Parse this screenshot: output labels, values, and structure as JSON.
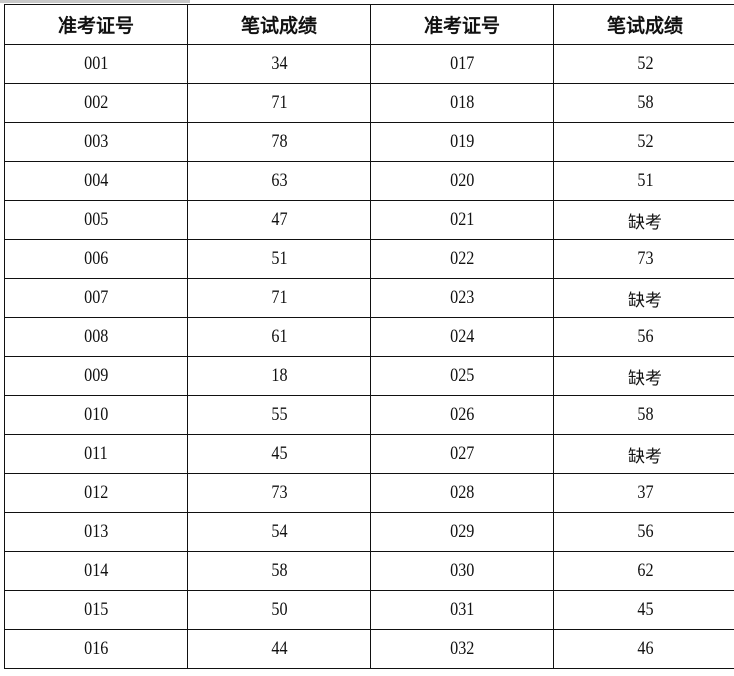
{
  "table": {
    "headers": [
      "准考证号",
      "笔试成绩",
      "准考证号",
      "笔试成绩"
    ],
    "rows": [
      [
        "001",
        "34",
        "017",
        "52"
      ],
      [
        "002",
        "71",
        "018",
        "58"
      ],
      [
        "003",
        "78",
        "019",
        "52"
      ],
      [
        "004",
        "63",
        "020",
        "51"
      ],
      [
        "005",
        "47",
        "021",
        "缺考"
      ],
      [
        "006",
        "51",
        "022",
        "73"
      ],
      [
        "007",
        "71",
        "023",
        "缺考"
      ],
      [
        "008",
        "61",
        "024",
        "56"
      ],
      [
        "009",
        "18",
        "025",
        "缺考"
      ],
      [
        "010",
        "55",
        "026",
        "58"
      ],
      [
        "011",
        "45",
        "027",
        "缺考"
      ],
      [
        "012",
        "73",
        "028",
        "37"
      ],
      [
        "013",
        "54",
        "029",
        "56"
      ],
      [
        "014",
        "58",
        "030",
        "62"
      ],
      [
        "015",
        "50",
        "031",
        "45"
      ],
      [
        "016",
        "44",
        "032",
        "46"
      ]
    ]
  }
}
